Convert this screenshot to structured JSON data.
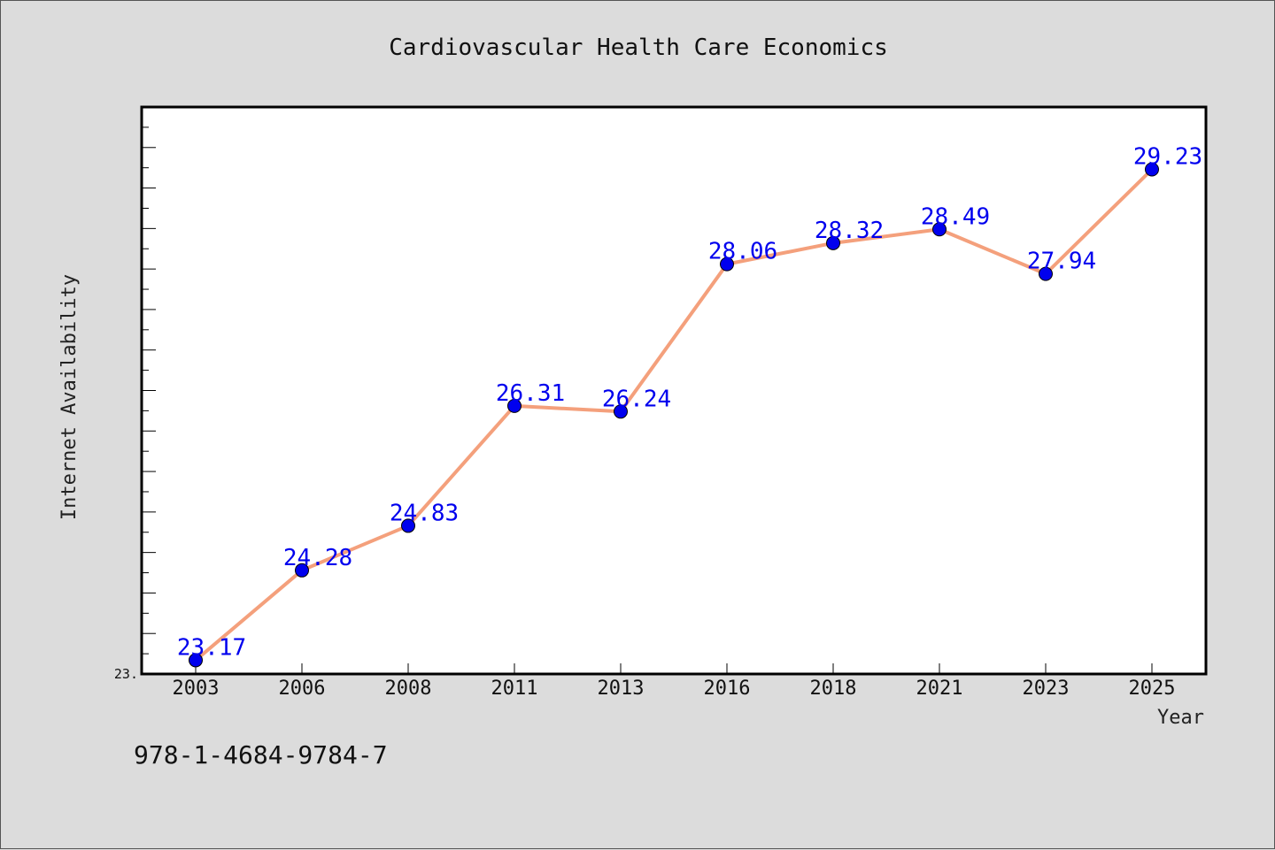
{
  "chart_data": {
    "type": "line",
    "title": "Cardiovascular Health Care Economics",
    "xlabel": "Year",
    "ylabel": "Internet Availability",
    "categories": [
      "2003",
      "2006",
      "2008",
      "2011",
      "2013",
      "2016",
      "2018",
      "2021",
      "2023",
      "2025"
    ],
    "series": [
      {
        "values": [
          23.17,
          24.28,
          24.83,
          26.31,
          26.24,
          28.06,
          28.32,
          28.49,
          27.94,
          29.23
        ],
        "labels": [
          "23.17",
          "24.28",
          "24.83",
          "26.31",
          "26.24",
          "28.06",
          "28.32",
          "28.49",
          "27.94",
          "29.23"
        ],
        "line_color": "#f4a07c",
        "marker_color": "#0000ee"
      }
    ],
    "ylim": [
      23.0,
      30.0
    ],
    "y_tick_labels": [
      "23."
    ],
    "grid": false,
    "legend": "none"
  },
  "footer": {
    "isbn": "978-1-4684-9784-7"
  }
}
